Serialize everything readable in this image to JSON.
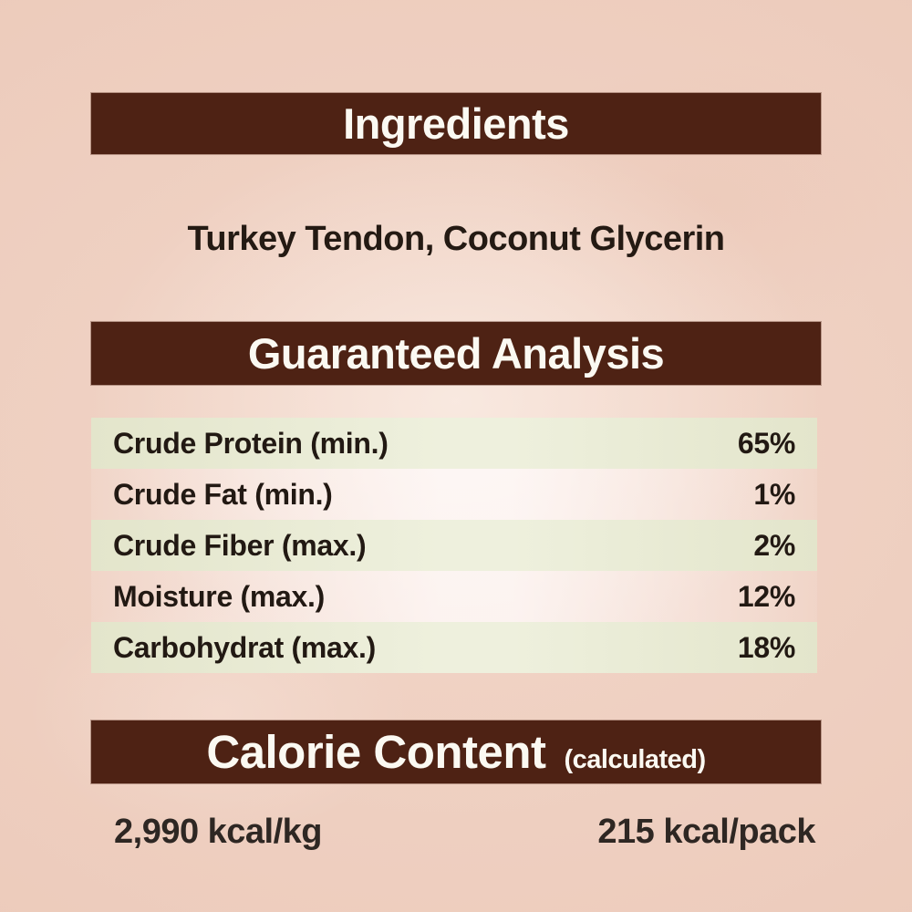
{
  "colors": {
    "accent_brown": "#4e2214",
    "background_pink": "#f0d1c2",
    "row_green": "#e4e6cd",
    "header_text": "#fbf9f2",
    "body_text": "#241a13"
  },
  "ingredients": {
    "title": "Ingredients",
    "list": "Turkey Tendon, Coconut Glycerin"
  },
  "guaranteed_analysis": {
    "title": "Guaranteed Analysis",
    "rows": [
      {
        "label": "Crude Protein (min.)",
        "value": "65%"
      },
      {
        "label": "Crude Fat (min.)",
        "value": "1%"
      },
      {
        "label": "Crude Fiber (max.)",
        "value": "2%"
      },
      {
        "label": "Moisture (max.)",
        "value": "12%"
      },
      {
        "label": "Carbohydrat (max.)",
        "value": "18%"
      }
    ]
  },
  "calorie_content": {
    "title": "Calorie Content",
    "note": "(calculated)",
    "per_kg": "2,990 kcal/kg",
    "per_pack": "215 kcal/pack"
  }
}
